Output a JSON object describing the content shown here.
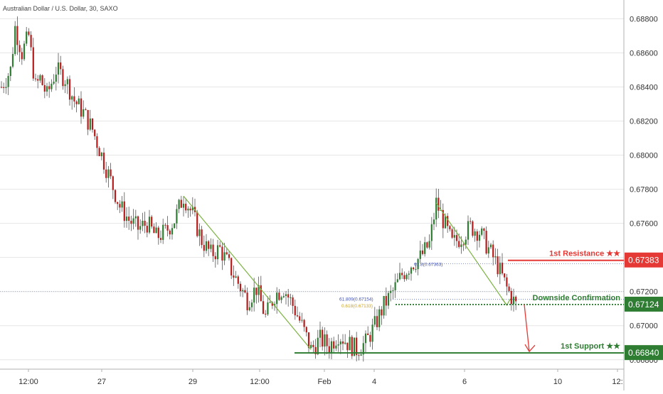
{
  "header": {
    "symbol_label": "Australian Dollar / U.S. Dollar, 30, SAXO"
  },
  "colors": {
    "up": "#2e7d32",
    "down": "#b71c1c",
    "wick": "#555555",
    "resistance": "#e53935",
    "confirmation": "#2e7d32",
    "support": "#2e7d32",
    "fib": "#3f51b5",
    "fib_label": "#c9a227",
    "pattern": "#7cb342",
    "grid": "#e6e6e6",
    "axis_text": "#333333"
  },
  "chart_data": {
    "type": "candlestick",
    "title": "Australian Dollar / U.S. Dollar, 30, SAXO",
    "ylim": [
      0.6662,
      0.6891
    ],
    "y_ticks": [
      "0.66800",
      "0.67000",
      "0.67200",
      "0.67400",
      "0.67600",
      "0.67800",
      "0.68000",
      "0.68200",
      "0.68400",
      "0.68600",
      "0.68800"
    ],
    "x_ticks": [
      "12:00",
      "27",
      "29",
      "12:00",
      "Feb",
      "4",
      "6",
      "10",
      "12:"
    ],
    "path": [
      [
        0,
        0.684
      ],
      [
        4,
        0.685
      ],
      [
        6,
        0.6875
      ],
      [
        9,
        0.686
      ],
      [
        12,
        0.687
      ],
      [
        15,
        0.684
      ],
      [
        17,
        0.6845
      ],
      [
        20,
        0.6835
      ],
      [
        24,
        0.685
      ],
      [
        28,
        0.6845
      ],
      [
        32,
        0.6832
      ],
      [
        36,
        0.6825
      ],
      [
        40,
        0.6815
      ],
      [
        44,
        0.68
      ],
      [
        48,
        0.6785
      ],
      [
        52,
        0.677
      ],
      [
        56,
        0.6762
      ],
      [
        60,
        0.6757
      ],
      [
        64,
        0.676
      ],
      [
        68,
        0.6752
      ],
      [
        72,
        0.6755
      ],
      [
        76,
        0.6762
      ],
      [
        80,
        0.6776
      ],
      [
        84,
        0.6765
      ],
      [
        88,
        0.675
      ],
      [
        92,
        0.6742
      ],
      [
        96,
        0.6745
      ],
      [
        100,
        0.6735
      ],
      [
        104,
        0.6725
      ],
      [
        108,
        0.6715
      ],
      [
        112,
        0.6722
      ],
      [
        116,
        0.6705
      ],
      [
        120,
        0.6718
      ],
      [
        124,
        0.6722
      ],
      [
        128,
        0.6712
      ],
      [
        132,
        0.67
      ],
      [
        136,
        0.6686
      ],
      [
        140,
        0.6692
      ],
      [
        144,
        0.6688
      ],
      [
        148,
        0.6695
      ],
      [
        152,
        0.669
      ],
      [
        156,
        0.6686
      ],
      [
        160,
        0.669
      ],
      [
        164,
        0.67
      ],
      [
        168,
        0.6712
      ],
      [
        172,
        0.672
      ],
      [
        176,
        0.673
      ],
      [
        180,
        0.6736
      ],
      [
        184,
        0.674
      ],
      [
        188,
        0.6748
      ],
      [
        191,
        0.6772
      ],
      [
        194,
        0.6762
      ],
      [
        198,
        0.6748
      ],
      [
        202,
        0.6752
      ],
      [
        206,
        0.6758
      ],
      [
        210,
        0.6755
      ],
      [
        214,
        0.6745
      ],
      [
        218,
        0.6735
      ],
      [
        222,
        0.6722
      ],
      [
        226,
        0.6712
      ]
    ],
    "pattern_lines": [
      [
        [
          0.6776,
          80
        ],
        [
          0.6686,
          136
        ]
      ],
      [
        [
          0.6772,
          191
        ],
        [
          0.6712,
          222
        ]
      ]
    ],
    "levels": [
      {
        "name": "1st Resistance ★★",
        "value": 0.67383,
        "value_label": "0.67383",
        "role": "resistance"
      },
      {
        "name": "Downside Confirmation",
        "value": 0.67124,
        "value_label": "0.67124",
        "role": "confirmation"
      },
      {
        "name": "1st Support ★★",
        "value": 0.6684,
        "value_label": "0.66840",
        "role": "support"
      }
    ],
    "fib_labels": {
      "upper": "61.8(0.67363)",
      "lower_a": "61.809(0.67154)",
      "lower_b": "0.618(0.67133)"
    },
    "last_price": 0.672
  }
}
